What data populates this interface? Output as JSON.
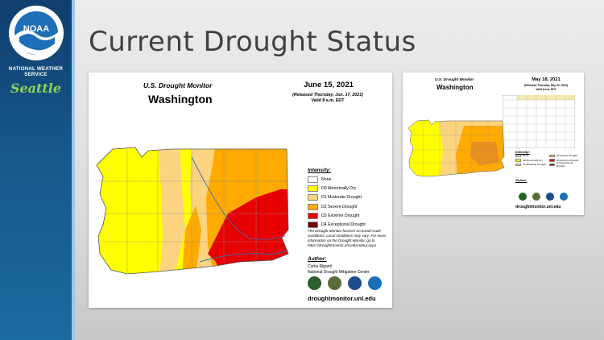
{
  "sidebar": {
    "logo_text": "NOAA",
    "agency": "NATIONAL WEATHER SERVICE",
    "office": "Seattle"
  },
  "slide": {
    "title": "Current Drought Status"
  },
  "legend_items": [
    {
      "label": "None",
      "color": "#ffffff"
    },
    {
      "label": "D0 Abnormally Dry",
      "color": "#ffff00"
    },
    {
      "label": "D1 Moderate Drought",
      "color": "#fcd37f"
    },
    {
      "label": "D2 Severe Drought",
      "color": "#ffaa00"
    },
    {
      "label": "D3 Extreme Drought",
      "color": "#e60000"
    },
    {
      "label": "D4 Exceptional Drought",
      "color": "#730000"
    }
  ],
  "main_map": {
    "header": "U.S. Drought Monitor",
    "state": "Washington",
    "date": "June 15, 2021",
    "released": "(Released Thursday, Jun. 17, 2021)",
    "valid": "Valid 8 a.m. EDT",
    "intensity_label": "Intensity:",
    "note": "The Drought Monitor focuses on broad-scale conditions. Local conditions may vary. For more information on the Drought Monitor, go to https://droughtmonitor.unl.edu/About.aspx",
    "author_label": "Author:",
    "author_name": "Curtis Riganti",
    "author_org": "National Drought Mitigation Center",
    "url": "droughtmonitor.unl.edu"
  },
  "small_map": {
    "header": "U.S. Drought Monitor",
    "state": "Washington",
    "date": "May 18, 2021",
    "released": "(Released Thursday, May 20, 2021)",
    "valid": "Valid 8 a.m. EDT",
    "intensity_label": "Intensity:",
    "author_label": "Author:",
    "url": "droughtmonitor.unl.edu"
  },
  "logos": [
    {
      "name": "usda-logo-icon",
      "color": "#2b5f2b"
    },
    {
      "name": "ndmc-seal-icon",
      "color": "#5a6b3a"
    },
    {
      "name": "doc-seal-icon",
      "color": "#1e4b8a"
    },
    {
      "name": "noaa-seal-icon",
      "color": "#1e6fb8"
    }
  ]
}
